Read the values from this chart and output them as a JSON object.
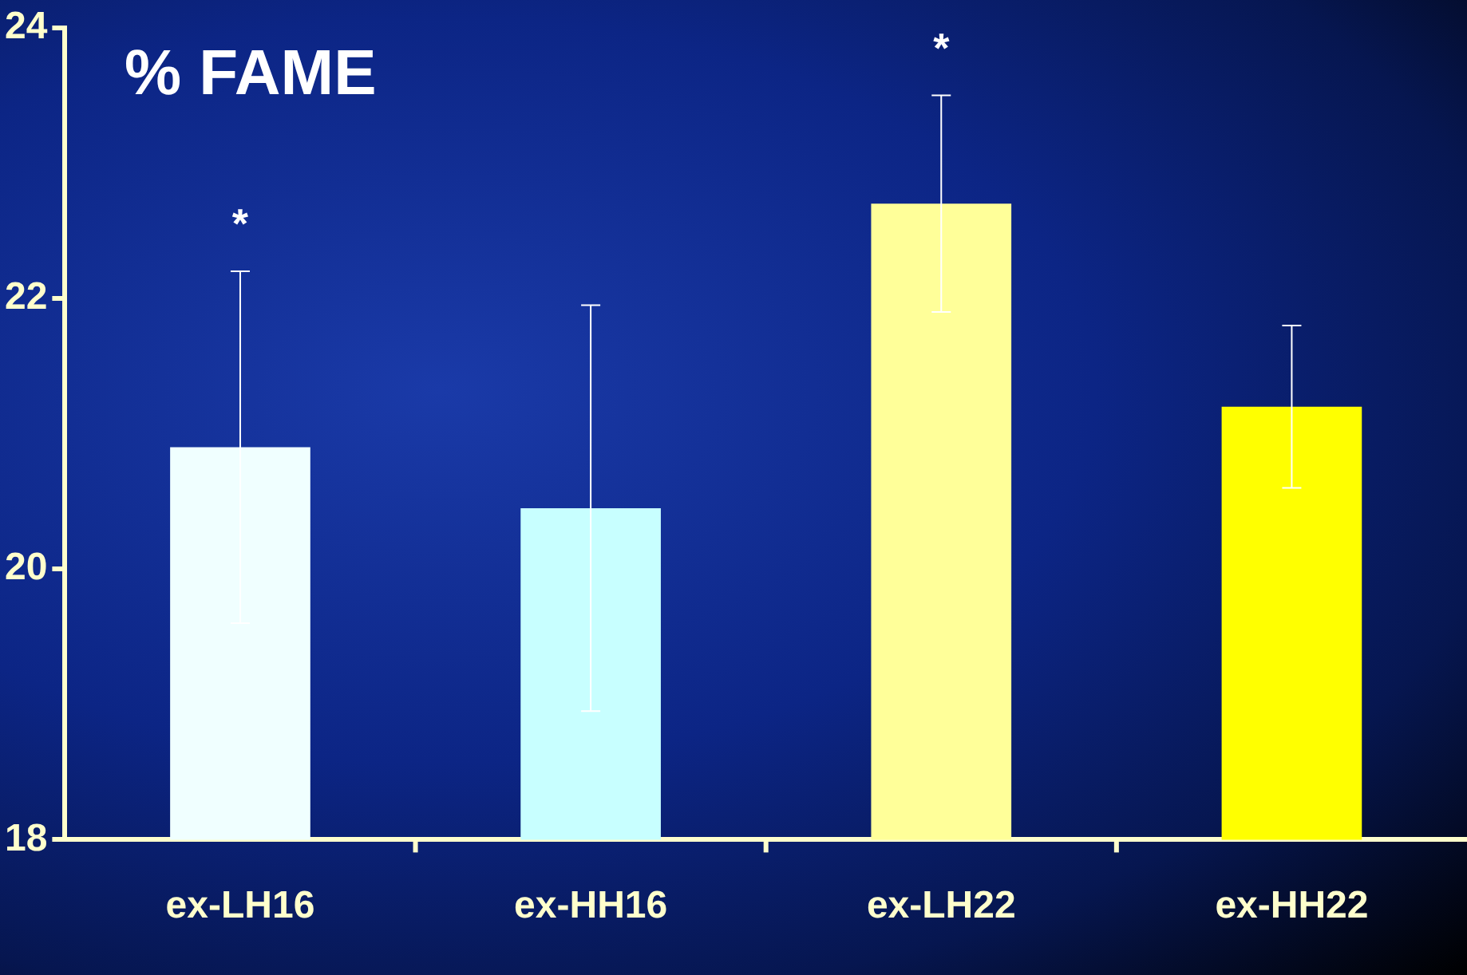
{
  "chart_data": {
    "type": "bar",
    "ylabel": "% FAME",
    "categories": [
      "ex-LH16",
      "ex-HH16",
      "ex-LH22",
      "ex-HH22"
    ],
    "values": [
      20.9,
      20.45,
      22.7,
      21.2
    ],
    "colors": [
      "#f0ffff",
      "#c8ffff",
      "#ffff99",
      "#ffff00"
    ],
    "errors": [
      1.3,
      1.5,
      0.8,
      0.6
    ],
    "ylim": [
      18,
      24
    ],
    "yticks": [
      18,
      20,
      22,
      24
    ],
    "grid": false,
    "legend": false,
    "annotations": [
      {
        "text": "*",
        "x": "ex-LH16",
        "y": 22.2
      },
      {
        "text": "*",
        "x": "ex-LH22",
        "y": 23.5
      }
    ]
  }
}
